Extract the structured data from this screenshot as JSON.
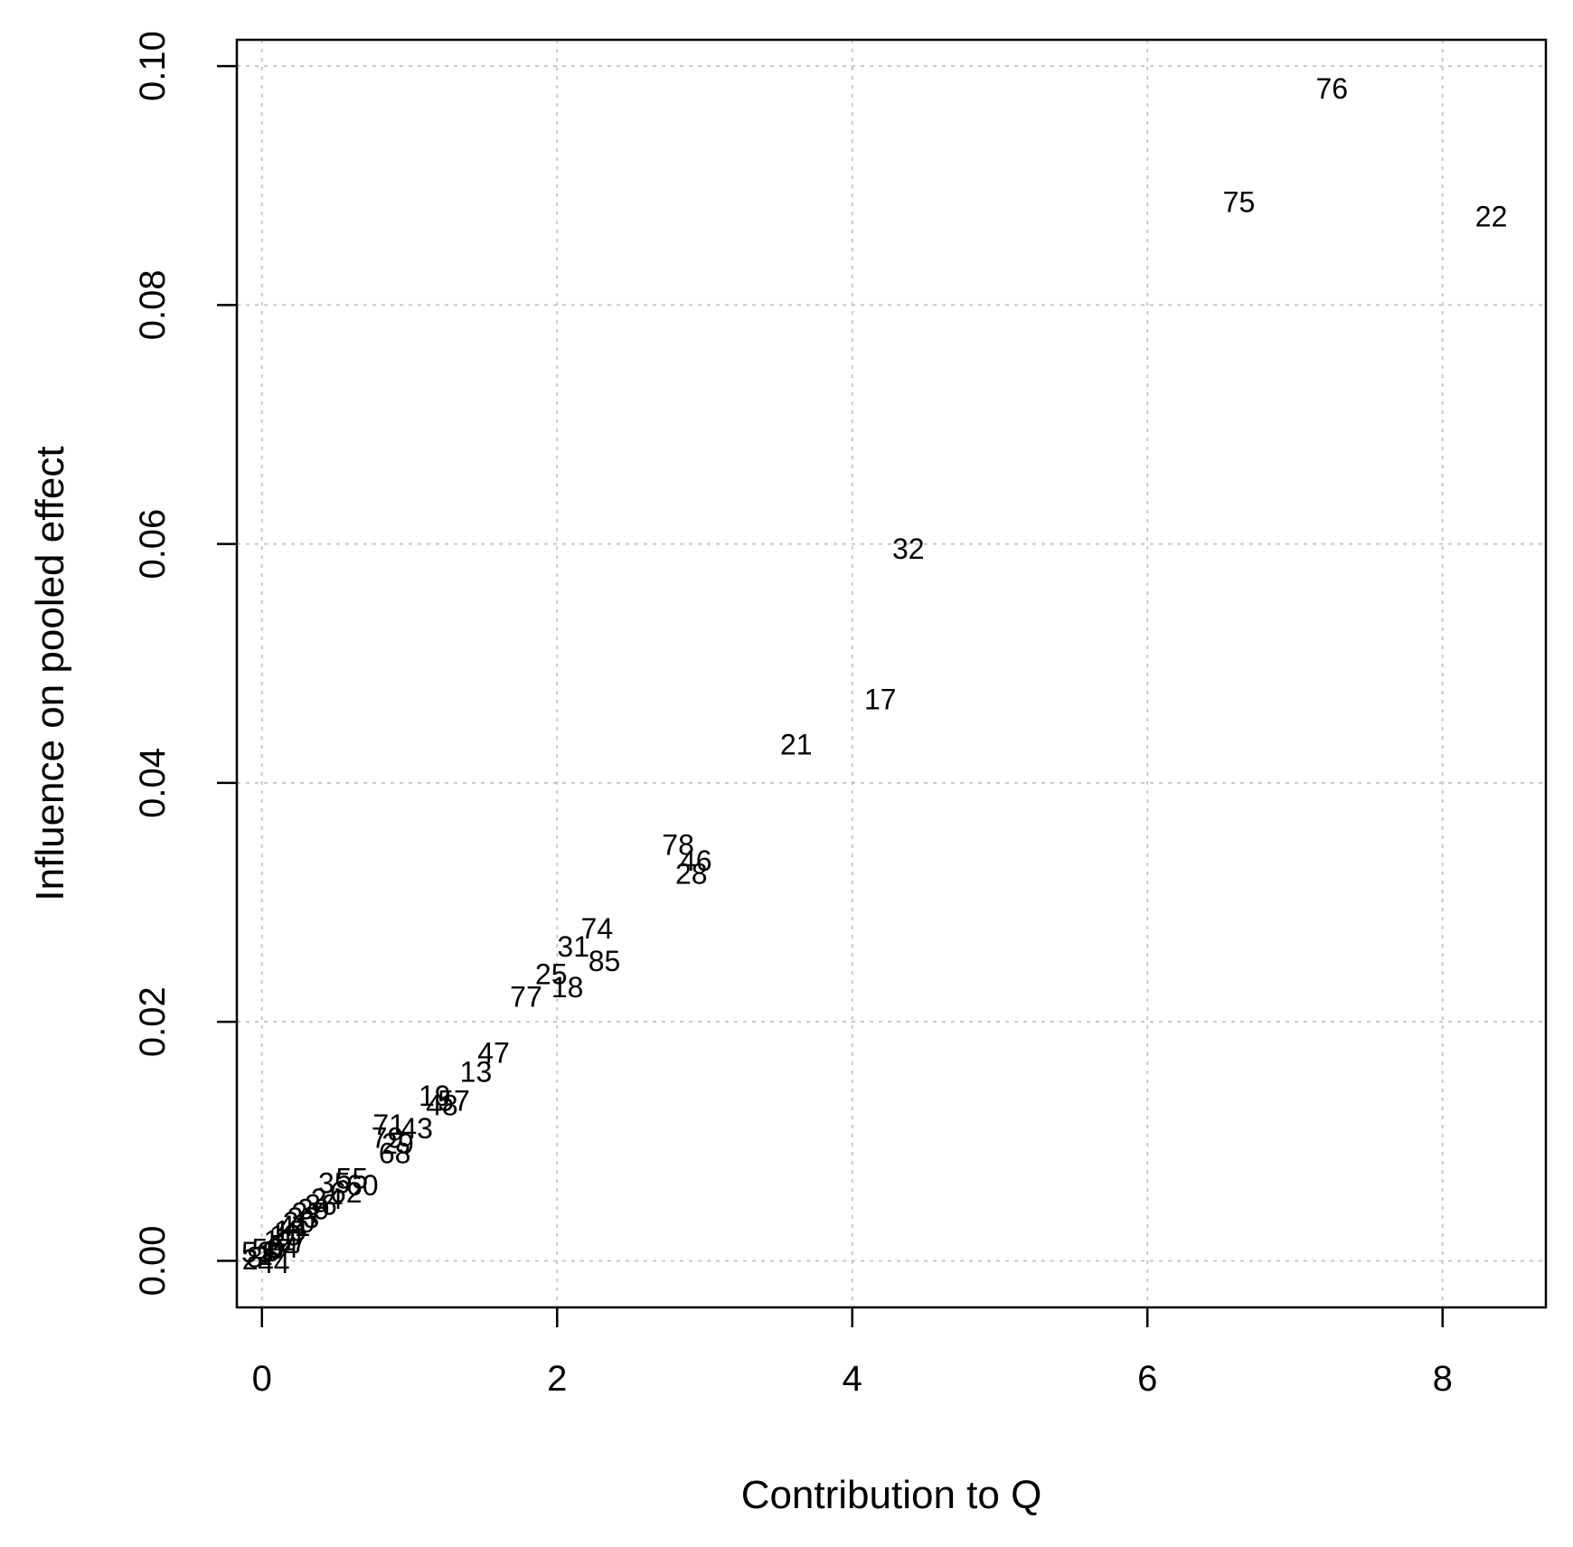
{
  "chart_data": {
    "type": "scatter",
    "xlabel": "Contribution to Q",
    "ylabel": "Influence on pooled effect",
    "xlim": [
      -0.17,
      8.7
    ],
    "ylim": [
      -0.0039,
      0.1022
    ],
    "x_ticks": [
      0,
      2,
      4,
      6,
      8
    ],
    "y_ticks": [
      0.0,
      0.02,
      0.04,
      0.06,
      0.08,
      0.1
    ],
    "x_tick_labels": [
      "0",
      "2",
      "4",
      "6",
      "8"
    ],
    "y_tick_labels": [
      "0.00",
      "0.02",
      "0.04",
      "0.06",
      "0.08",
      "0.10"
    ],
    "grid": true,
    "marker": "study labels",
    "points": [
      {
        "label": "76",
        "x": 7.25,
        "y": 0.0981
      },
      {
        "label": "75",
        "x": 6.62,
        "y": 0.0886
      },
      {
        "label": "22",
        "x": 8.33,
        "y": 0.0874
      },
      {
        "label": "32",
        "x": 4.38,
        "y": 0.0596
      },
      {
        "label": "17",
        "x": 4.19,
        "y": 0.047
      },
      {
        "label": "21",
        "x": 3.62,
        "y": 0.0432
      },
      {
        "label": "78",
        "x": 2.82,
        "y": 0.0348
      },
      {
        "label": "46",
        "x": 2.94,
        "y": 0.0335
      },
      {
        "label": "28",
        "x": 2.91,
        "y": 0.0324
      },
      {
        "label": "74",
        "x": 2.27,
        "y": 0.0278
      },
      {
        "label": "31",
        "x": 2.11,
        "y": 0.0263
      },
      {
        "label": "85",
        "x": 2.32,
        "y": 0.0251
      },
      {
        "label": "25",
        "x": 1.96,
        "y": 0.024
      },
      {
        "label": "18",
        "x": 2.07,
        "y": 0.0229
      },
      {
        "label": "77",
        "x": 1.79,
        "y": 0.0221
      },
      {
        "label": "47",
        "x": 1.57,
        "y": 0.0174
      },
      {
        "label": "13",
        "x": 1.45,
        "y": 0.0158
      },
      {
        "label": "19",
        "x": 1.17,
        "y": 0.0138
      },
      {
        "label": "57",
        "x": 1.3,
        "y": 0.0134
      },
      {
        "label": "48",
        "x": 1.22,
        "y": 0.013
      },
      {
        "label": "43",
        "x": 1.05,
        "y": 0.0111
      },
      {
        "label": "71",
        "x": 0.86,
        "y": 0.0114
      },
      {
        "label": "79",
        "x": 0.85,
        "y": 0.0103
      },
      {
        "label": "29",
        "x": 0.92,
        "y": 0.0098
      },
      {
        "label": "68",
        "x": 0.9,
        "y": 0.009
      },
      {
        "label": "35",
        "x": 0.49,
        "y": 0.0065
      },
      {
        "label": "55",
        "x": 0.61,
        "y": 0.0069
      },
      {
        "label": "60",
        "x": 0.68,
        "y": 0.0063
      },
      {
        "label": "62",
        "x": 0.57,
        "y": 0.0057
      },
      {
        "label": "24",
        "x": 0.44,
        "y": 0.0052
      },
      {
        "label": "39",
        "x": 0.35,
        "y": 0.0043
      },
      {
        "label": "33",
        "x": 0.28,
        "y": 0.0036
      },
      {
        "label": "41",
        "x": 0.22,
        "y": 0.0029
      },
      {
        "label": "10",
        "x": 0.16,
        "y": 0.0021
      },
      {
        "label": "5",
        "x": 0.1,
        "y": 0.0013
      },
      {
        "label": "3",
        "x": 0.06,
        "y": 0.0008
      },
      {
        "label": "1",
        "x": 0.02,
        "y": 0.0005
      },
      {
        "label": "8",
        "x": -0.05,
        "y": 0.0003
      },
      {
        "label": "2",
        "x": -0.08,
        "y": 0.0001
      },
      {
        "label": "12",
        "x": 0.12,
        "y": 0.0017
      },
      {
        "label": "15",
        "x": 0.19,
        "y": 0.0025
      },
      {
        "label": "20",
        "x": 0.25,
        "y": 0.0032
      },
      {
        "label": "27",
        "x": 0.31,
        "y": 0.004
      },
      {
        "label": "36",
        "x": 0.4,
        "y": 0.0047
      },
      {
        "label": "44",
        "x": 0.08,
        "y": -0.0002
      },
      {
        "label": "50",
        "x": 0.04,
        "y": 0.001
      },
      {
        "label": "53",
        "x": -0.03,
        "y": 0.0007
      },
      {
        "label": "64",
        "x": 0.14,
        "y": 0.0011
      },
      {
        "label": "67",
        "x": 0.2,
        "y": 0.0016
      }
    ]
  }
}
